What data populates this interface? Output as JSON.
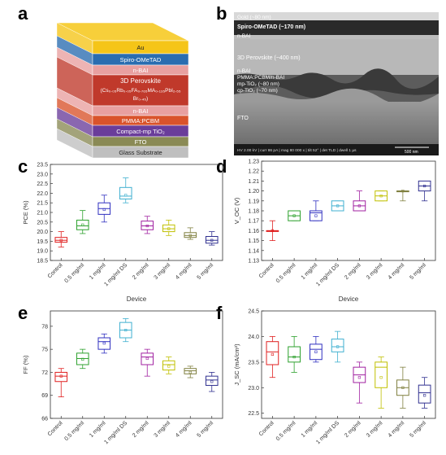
{
  "panels": {
    "a": "a",
    "b": "b",
    "c": "c",
    "d": "d",
    "e": "e",
    "f": "f"
  },
  "stack_layers": [
    {
      "label": "Au",
      "color": "#f5c518"
    },
    {
      "label": "Spiro-OMeTAD",
      "color": "#2a6db0"
    },
    {
      "label": "n-BAI",
      "color": "#e8a0a0"
    },
    {
      "label": "3D Perovskite",
      "color": "#c0392b"
    },
    {
      "label": "n-BAI",
      "color": "#e8a0a0"
    },
    {
      "label": "PMMA:PCBM",
      "color": "#d9532b"
    },
    {
      "label": "Compact-mp TiO₂",
      "color": "#6a3d9a"
    },
    {
      "label": "FTO",
      "color": "#8a8a55"
    },
    {
      "label": "Glass Substrate",
      "color": "#bfbfbf"
    }
  ],
  "stack_formula_line1": "(Cs₀.₀₅Rb₀.₀₅FA₀.₇₆₅MA₀.₁₃₅PbI₂.₅₅",
  "stack_formula_line2": "Br₀.₄₅)",
  "sem_labels": {
    "gold": "Gold (~80 nm)",
    "spiro": "Spiro-OMeTAD (~170 nm)",
    "nbai1": "n-BAI",
    "perov": "3D Perovskite (~400 nm)",
    "nbai2": "n-BAI",
    "pmma": "PMMA:PCBM/n-BAI",
    "mptio2": "mp-TiO₂ (~80 nm)",
    "cptio2": "cp-TiO₂ (~70 nm)",
    "fto": "FTO",
    "infobar": "HV 2.00 kV | curr 86 pA | mag 80 000 x | tilt 52° | det TLD | dwell 1 µs",
    "scalebar": "500 nm"
  },
  "devices": [
    "Control",
    "0.5 mg/ml",
    "1 mg/ml",
    "1 mg/ml DS",
    "2 mg/ml",
    "3 mg/ml",
    "4 mg/ml",
    "5 mg/ml"
  ],
  "box_colors": [
    "#e02020",
    "#2ca02c",
    "#3030c0",
    "#40b0d0",
    "#a020a0",
    "#c0c000",
    "#808040",
    "#303090"
  ],
  "chart_data": [
    {
      "id": "c",
      "type": "box",
      "ylabel": "PCE (%)",
      "xlabel": "Device",
      "ylim": [
        18.5,
        23.5
      ],
      "yticks": [
        18.5,
        19.0,
        19.5,
        20.0,
        20.5,
        21.0,
        21.5,
        22.0,
        22.5,
        23.0,
        23.5
      ],
      "boxes": [
        {
          "min": 19.2,
          "q1": 19.45,
          "median": 19.55,
          "mean": 19.55,
          "q3": 19.7,
          "max": 20.0
        },
        {
          "min": 19.9,
          "q1": 20.1,
          "median": 20.3,
          "mean": 20.35,
          "q3": 20.6,
          "max": 21.1
        },
        {
          "min": 20.5,
          "q1": 20.9,
          "median": 21.2,
          "mean": 21.15,
          "q3": 21.5,
          "max": 21.9
        },
        {
          "min": 21.5,
          "q1": 21.7,
          "median": 21.85,
          "mean": 21.9,
          "q3": 22.3,
          "max": 22.8
        },
        {
          "min": 19.9,
          "q1": 20.1,
          "median": 20.3,
          "mean": 20.3,
          "q3": 20.55,
          "max": 20.8
        },
        {
          "min": 19.8,
          "q1": 20.0,
          "median": 20.15,
          "mean": 20.15,
          "q3": 20.35,
          "max": 20.6
        },
        {
          "min": 19.6,
          "q1": 19.7,
          "median": 19.8,
          "mean": 19.8,
          "q3": 19.95,
          "max": 20.2
        },
        {
          "min": 19.3,
          "q1": 19.4,
          "median": 19.55,
          "mean": 19.55,
          "q3": 19.75,
          "max": 20.0
        }
      ]
    },
    {
      "id": "d",
      "type": "box",
      "ylabel": "V_OC (V)",
      "xlabel": "Device",
      "ylim": [
        1.13,
        1.23
      ],
      "yticks": [
        1.13,
        1.14,
        1.15,
        1.16,
        1.17,
        1.18,
        1.19,
        1.2,
        1.21,
        1.22,
        1.23
      ],
      "boxes": [
        {
          "min": 1.15,
          "q1": 1.16,
          "median": 1.16,
          "mean": 1.16,
          "q3": 1.16,
          "max": 1.17
        },
        {
          "min": 1.17,
          "q1": 1.17,
          "median": 1.175,
          "mean": 1.175,
          "q3": 1.18,
          "max": 1.18
        },
        {
          "min": 1.17,
          "q1": 1.17,
          "median": 1.178,
          "mean": 1.175,
          "q3": 1.18,
          "max": 1.19
        },
        {
          "min": 1.18,
          "q1": 1.18,
          "median": 1.185,
          "mean": 1.185,
          "q3": 1.19,
          "max": 1.19
        },
        {
          "min": 1.18,
          "q1": 1.18,
          "median": 1.185,
          "mean": 1.185,
          "q3": 1.19,
          "max": 1.2
        },
        {
          "min": 1.19,
          "q1": 1.19,
          "median": 1.195,
          "mean": 1.195,
          "q3": 1.2,
          "max": 1.2
        },
        {
          "min": 1.19,
          "q1": 1.2,
          "median": 1.2,
          "mean": 1.2,
          "q3": 1.2,
          "max": 1.2
        },
        {
          "min": 1.19,
          "q1": 1.2,
          "median": 1.205,
          "mean": 1.205,
          "q3": 1.21,
          "max": 1.21
        }
      ]
    },
    {
      "id": "e",
      "type": "box",
      "ylabel": "FF (%)",
      "xlabel": "Device",
      "ylim": [
        66,
        80
      ],
      "yticks": [
        66,
        69,
        72,
        75,
        78
      ],
      "boxes": [
        {
          "min": 68.8,
          "q1": 70.8,
          "median": 71.5,
          "mean": 71.5,
          "q3": 72.0,
          "max": 72.5
        },
        {
          "min": 72.5,
          "q1": 73.0,
          "median": 73.8,
          "mean": 73.7,
          "q3": 74.5,
          "max": 75.0
        },
        {
          "min": 74.5,
          "q1": 75.0,
          "median": 76.0,
          "mean": 75.8,
          "q3": 76.5,
          "max": 77.0
        },
        {
          "min": 76.0,
          "q1": 76.5,
          "median": 77.5,
          "mean": 77.5,
          "q3": 78.5,
          "max": 79.0
        },
        {
          "min": 71.5,
          "q1": 73.0,
          "median": 74.0,
          "mean": 73.8,
          "q3": 74.5,
          "max": 75.0
        },
        {
          "min": 71.8,
          "q1": 72.3,
          "median": 73.0,
          "mean": 72.8,
          "q3": 73.5,
          "max": 74.0
        },
        {
          "min": 71.3,
          "q1": 71.8,
          "median": 72.2,
          "mean": 72.0,
          "q3": 72.5,
          "max": 72.8
        },
        {
          "min": 69.5,
          "q1": 70.3,
          "median": 71.0,
          "mean": 70.8,
          "q3": 71.5,
          "max": 72.0
        }
      ]
    },
    {
      "id": "f",
      "type": "box",
      "ylabel": "J_SC (mA/cm²)",
      "xlabel": "Device",
      "ylim": [
        22.4,
        24.5
      ],
      "yticks": [
        22.5,
        23.0,
        23.5,
        24.0,
        24.5
      ],
      "boxes": [
        {
          "min": 23.2,
          "q1": 23.45,
          "median": 23.7,
          "mean": 23.65,
          "q3": 23.9,
          "max": 24.0
        },
        {
          "min": 23.3,
          "q1": 23.5,
          "median": 23.6,
          "mean": 23.6,
          "q3": 23.8,
          "max": 24.0
        },
        {
          "min": 23.5,
          "q1": 23.55,
          "median": 23.75,
          "mean": 23.7,
          "q3": 23.85,
          "max": 24.0
        },
        {
          "min": 23.5,
          "q1": 23.7,
          "median": 23.8,
          "mean": 23.8,
          "q3": 23.95,
          "max": 24.1
        },
        {
          "min": 22.7,
          "q1": 23.1,
          "median": 23.25,
          "mean": 23.2,
          "q3": 23.4,
          "max": 23.5
        },
        {
          "min": 22.6,
          "q1": 23.0,
          "median": 23.4,
          "mean": 23.2,
          "q3": 23.5,
          "max": 23.6
        },
        {
          "min": 22.6,
          "q1": 22.85,
          "median": 23.0,
          "mean": 23.0,
          "q3": 23.15,
          "max": 23.4
        },
        {
          "min": 22.6,
          "q1": 22.7,
          "median": 22.9,
          "mean": 22.85,
          "q3": 23.05,
          "max": 23.2
        }
      ]
    }
  ]
}
